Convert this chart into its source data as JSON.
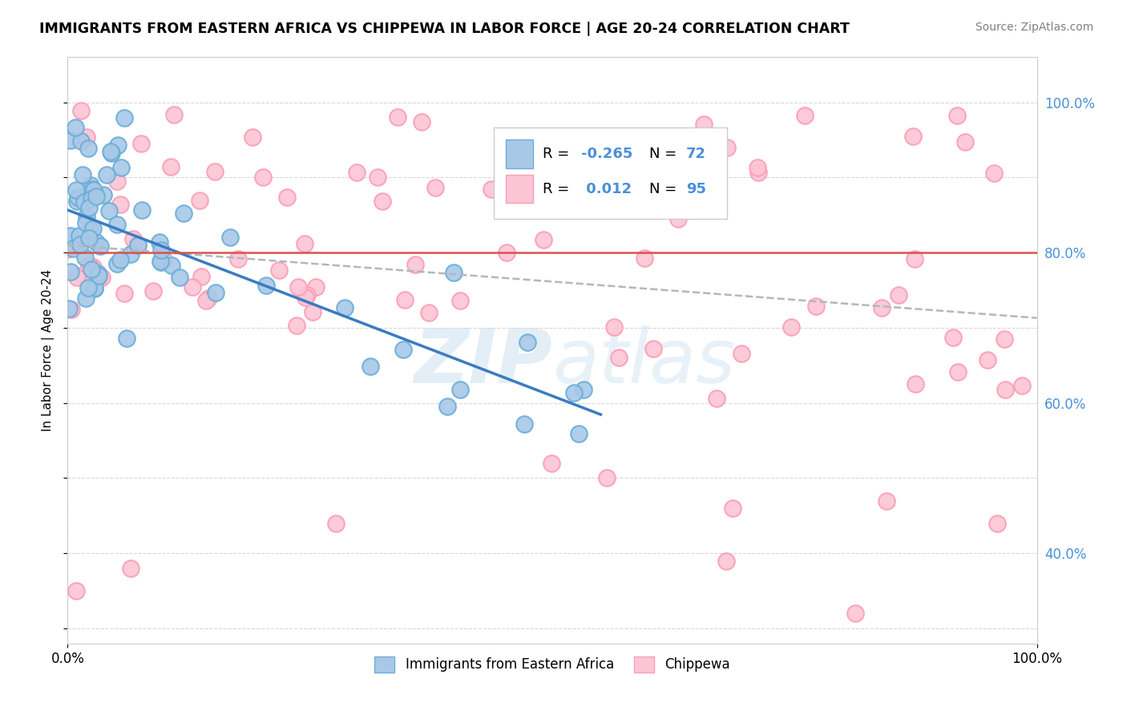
{
  "title": "IMMIGRANTS FROM EASTERN AFRICA VS CHIPPEWA IN LABOR FORCE | AGE 20-24 CORRELATION CHART",
  "source": "Source: ZipAtlas.com",
  "ylabel": "In Labor Force | Age 20-24",
  "xlim": [
    0.0,
    1.0
  ],
  "ylim": [
    0.28,
    1.06
  ],
  "x_tick_labels": [
    "0.0%",
    "100.0%"
  ],
  "x_tick_positions": [
    0.0,
    1.0
  ],
  "y_tick_labels": [
    "40.0%",
    "60.0%",
    "80.0%",
    "100.0%"
  ],
  "y_tick_positions": [
    0.4,
    0.6,
    0.8,
    1.0
  ],
  "background_color": "#ffffff",
  "grid_color": "#d8d8d8",
  "watermark": "ZIPatlas",
  "blue_scatter_color": "#a8c8e8",
  "blue_edge_color": "#6baed6",
  "pink_scatter_color": "#fcc5d5",
  "pink_edge_color": "#fa9fb5",
  "blue_trend_color": "#3a7cc1",
  "gray_trend_color": "#b0b8c0",
  "red_line_color": "#d9534f",
  "blue_r": "-0.265",
  "blue_n": "72",
  "pink_r": "0.012",
  "pink_n": "95",
  "right_tick_color": "#4a90d9"
}
